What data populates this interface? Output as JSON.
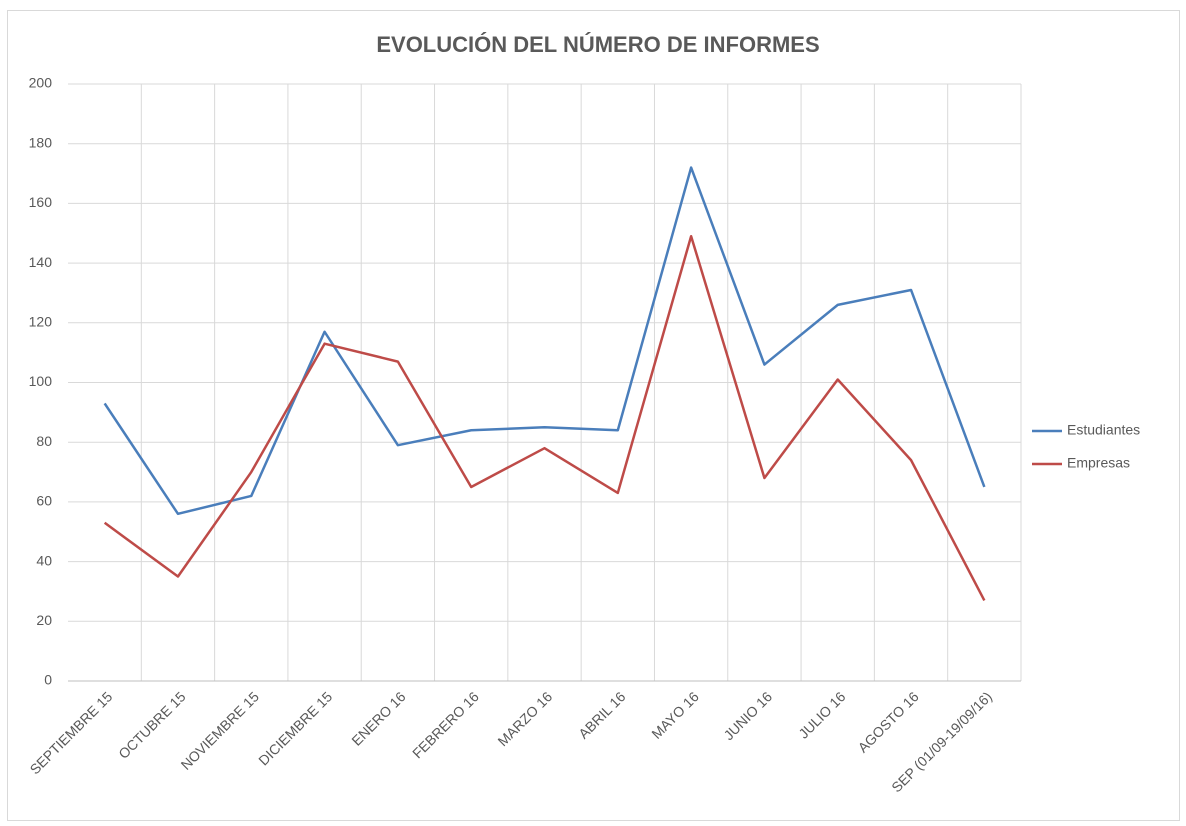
{
  "chart_data": {
    "type": "line",
    "title": "EVOLUCIÓN DEL NÚMERO DE INFORMES",
    "categories": [
      "SEPTIEMBRE 15",
      "OCTUBRE 15",
      "NOVIEMBRE 15",
      "DICIEMBRE 15",
      "ENERO 16",
      "FEBRERO 16",
      "MARZO 16",
      "ABRIL 16",
      "MAYO 16",
      "JUNIO 16",
      "JULIO 16",
      "AGOSTO 16",
      "SEP (01/09-19/09/16)"
    ],
    "series": [
      {
        "name": "Estudiantes",
        "color": "#4a7ebb",
        "values": [
          93,
          56,
          62,
          117,
          79,
          84,
          85,
          84,
          172,
          106,
          126,
          131,
          65
        ]
      },
      {
        "name": "Empresas",
        "color": "#be4b48",
        "values": [
          53,
          35,
          70,
          113,
          107,
          65,
          78,
          63,
          149,
          68,
          101,
          74,
          27
        ]
      }
    ],
    "ylim": [
      0,
      200
    ],
    "yticks": [
      0,
      20,
      40,
      60,
      80,
      100,
      120,
      140,
      160,
      180,
      200
    ],
    "grid": true,
    "legend": "right"
  }
}
